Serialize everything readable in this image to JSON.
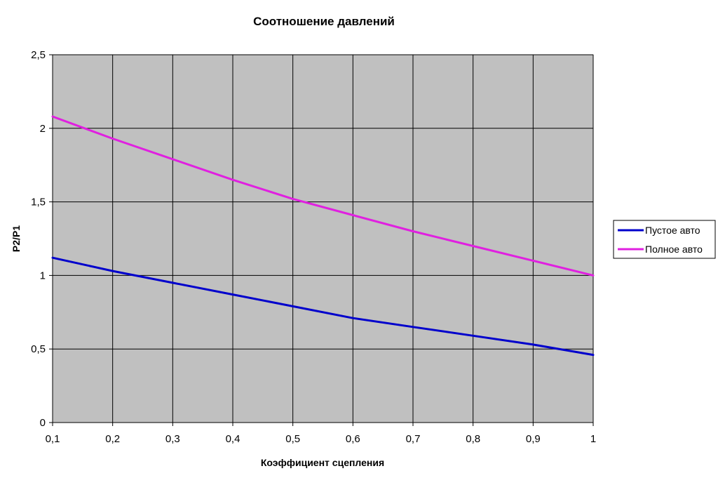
{
  "chart_data": {
    "type": "line",
    "title": "Соотношение давлений",
    "xlabel": "Коэффициент сцепления",
    "ylabel": "P2/P1",
    "x": [
      0.1,
      0.2,
      0.3,
      0.4,
      0.5,
      0.6,
      0.7,
      0.8,
      0.9,
      1.0
    ],
    "x_tick_labels": [
      "0,1",
      "0,2",
      "0,3",
      "0,4",
      "0,5",
      "0,6",
      "0,7",
      "0,8",
      "0,9",
      "1"
    ],
    "y_tick_labels": [
      "0",
      "0,5",
      "1",
      "1,5",
      "2",
      "2,5"
    ],
    "y_ticks": [
      0,
      0.5,
      1,
      1.5,
      2,
      2.5
    ],
    "xlim": [
      0.1,
      1.0
    ],
    "ylim": [
      0,
      2.5
    ],
    "grid": true,
    "legend_position": "right",
    "plot_background": "#c0c0c0",
    "series": [
      {
        "name": "Пустое авто",
        "color": "#0000cc",
        "values": [
          1.12,
          1.03,
          0.95,
          0.87,
          0.79,
          0.71,
          0.65,
          0.59,
          0.53,
          0.46
        ]
      },
      {
        "name": "Полное авто",
        "color": "#e020e0",
        "values": [
          2.08,
          1.93,
          1.79,
          1.65,
          1.52,
          1.41,
          1.3,
          1.2,
          1.1,
          1.0
        ]
      }
    ]
  }
}
